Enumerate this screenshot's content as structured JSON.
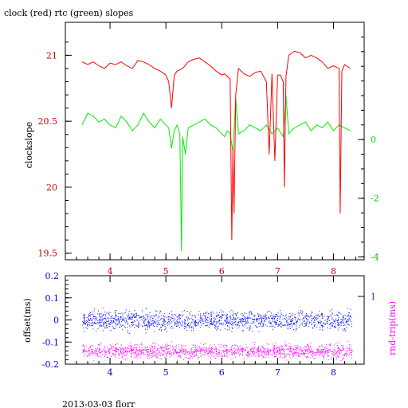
{
  "chart_data": [
    {
      "type": "line",
      "title": "clock (red) rtc (green) slopes",
      "xlim": [
        3.2,
        8.55
      ],
      "x_ticks": [
        "4",
        "5",
        "6",
        "7",
        "8"
      ],
      "ylabel": "clockslope",
      "ylim": [
        19.45,
        21.25
      ],
      "y_ticks": [
        "19.5",
        "20",
        "20.5",
        "21"
      ],
      "y2lim": [
        -4.1,
        4.0
      ],
      "y2_ticks": [
        "0",
        "-2",
        "-4"
      ],
      "colors": {
        "clock": "#ff0000",
        "rtc": "#00ee00",
        "left_axis": "#cc0000",
        "right_axis": "#00cc00"
      },
      "series": [
        {
          "color": "#ff0000",
          "x": [
            3.5,
            3.6,
            3.7,
            3.8,
            3.9,
            4.0,
            4.1,
            4.2,
            4.3,
            4.4,
            4.5,
            4.6,
            4.7,
            4.8,
            4.9,
            5.0,
            5.05,
            5.1,
            5.15,
            5.2,
            5.3,
            5.4,
            5.5,
            5.6,
            5.7,
            5.8,
            5.9,
            6.0,
            6.05,
            6.1,
            6.15,
            6.18,
            6.2,
            6.22,
            6.25,
            6.3,
            6.4,
            6.5,
            6.6,
            6.7,
            6.8,
            6.85,
            6.9,
            6.95,
            7.0,
            7.05,
            7.1,
            7.12,
            7.15,
            7.2,
            7.3,
            7.4,
            7.5,
            7.6,
            7.7,
            7.8,
            7.9,
            8.0,
            8.1,
            8.12,
            8.15,
            8.2,
            8.3
          ],
          "y": [
            20.95,
            20.93,
            20.95,
            20.92,
            20.9,
            20.94,
            20.93,
            20.95,
            20.92,
            20.9,
            20.96,
            20.95,
            20.93,
            20.9,
            20.88,
            20.85,
            20.8,
            20.6,
            20.85,
            20.88,
            20.9,
            20.95,
            20.97,
            20.98,
            20.95,
            20.92,
            20.88,
            20.85,
            20.86,
            20.84,
            20.82,
            19.6,
            20.3,
            19.8,
            20.7,
            20.9,
            20.86,
            20.84,
            20.87,
            20.88,
            20.8,
            20.25,
            20.86,
            20.2,
            20.85,
            20.85,
            20.8,
            20.0,
            20.84,
            21.0,
            21.03,
            21.02,
            20.98,
            21.0,
            20.98,
            20.95,
            20.9,
            20.92,
            20.9,
            19.8,
            20.88,
            20.93,
            20.9
          ]
        },
        {
          "color": "#00ee00",
          "axis": "right",
          "x": [
            3.5,
            3.6,
            3.7,
            3.8,
            3.9,
            4.0,
            4.1,
            4.2,
            4.3,
            4.4,
            4.5,
            4.6,
            4.7,
            4.8,
            4.9,
            5.0,
            5.05,
            5.1,
            5.15,
            5.2,
            5.25,
            5.28,
            5.3,
            5.35,
            5.4,
            5.5,
            5.6,
            5.7,
            5.8,
            5.9,
            6.0,
            6.05,
            6.1,
            6.15,
            6.2,
            6.25,
            6.3,
            6.4,
            6.5,
            6.6,
            6.7,
            6.8,
            6.9,
            7.0,
            7.1,
            7.15,
            7.2,
            7.3,
            7.4,
            7.5,
            7.6,
            7.7,
            7.8,
            7.9,
            8.0,
            8.1,
            8.2,
            8.3
          ],
          "y": [
            0.5,
            0.9,
            0.8,
            0.6,
            0.7,
            0.5,
            0.4,
            0.8,
            0.6,
            0.3,
            0.5,
            0.9,
            0.6,
            0.4,
            0.7,
            0.5,
            0.4,
            -0.3,
            0.3,
            0.5,
            0.2,
            -3.8,
            0.1,
            -0.5,
            0.4,
            0.5,
            0.6,
            0.7,
            0.5,
            0.4,
            0.2,
            0.1,
            0.3,
            0.2,
            -0.4,
            1.4,
            0.2,
            0.3,
            0.5,
            0.4,
            0.3,
            0.5,
            0.2,
            0.4,
            0.1,
            1.5,
            0.2,
            0.4,
            0.5,
            0.6,
            0.3,
            0.5,
            0.4,
            0.6,
            0.3,
            0.5,
            0.4,
            0.3
          ]
        }
      ]
    },
    {
      "type": "scatter",
      "xlim": [
        3.2,
        8.55
      ],
      "x_ticks": [
        "4",
        "5",
        "6",
        "7",
        "8"
      ],
      "ylabel": "offset(ms)",
      "ylim": [
        -0.2,
        0.2
      ],
      "y_ticks": [
        "0.2",
        "0.1",
        "0",
        "-0.1",
        "-0.2"
      ],
      "y2label": "rnd-trip(ms)",
      "y2_ticks": [
        "1"
      ],
      "colors": {
        "offset": "#0000ff",
        "rnd_trip": "#ff00ff",
        "left_axis": "#0000cc",
        "right_axis": "#cc00cc"
      },
      "series": [
        {
          "color": "#0000ff",
          "x_range": [
            3.5,
            8.33
          ],
          "center": 0.0,
          "spread": 0.02
        },
        {
          "color": "#ff00ff",
          "x_range": [
            3.5,
            8.33
          ],
          "center": -0.14,
          "spread": 0.015
        }
      ]
    }
  ],
  "footer": "2013-03-03 florr"
}
